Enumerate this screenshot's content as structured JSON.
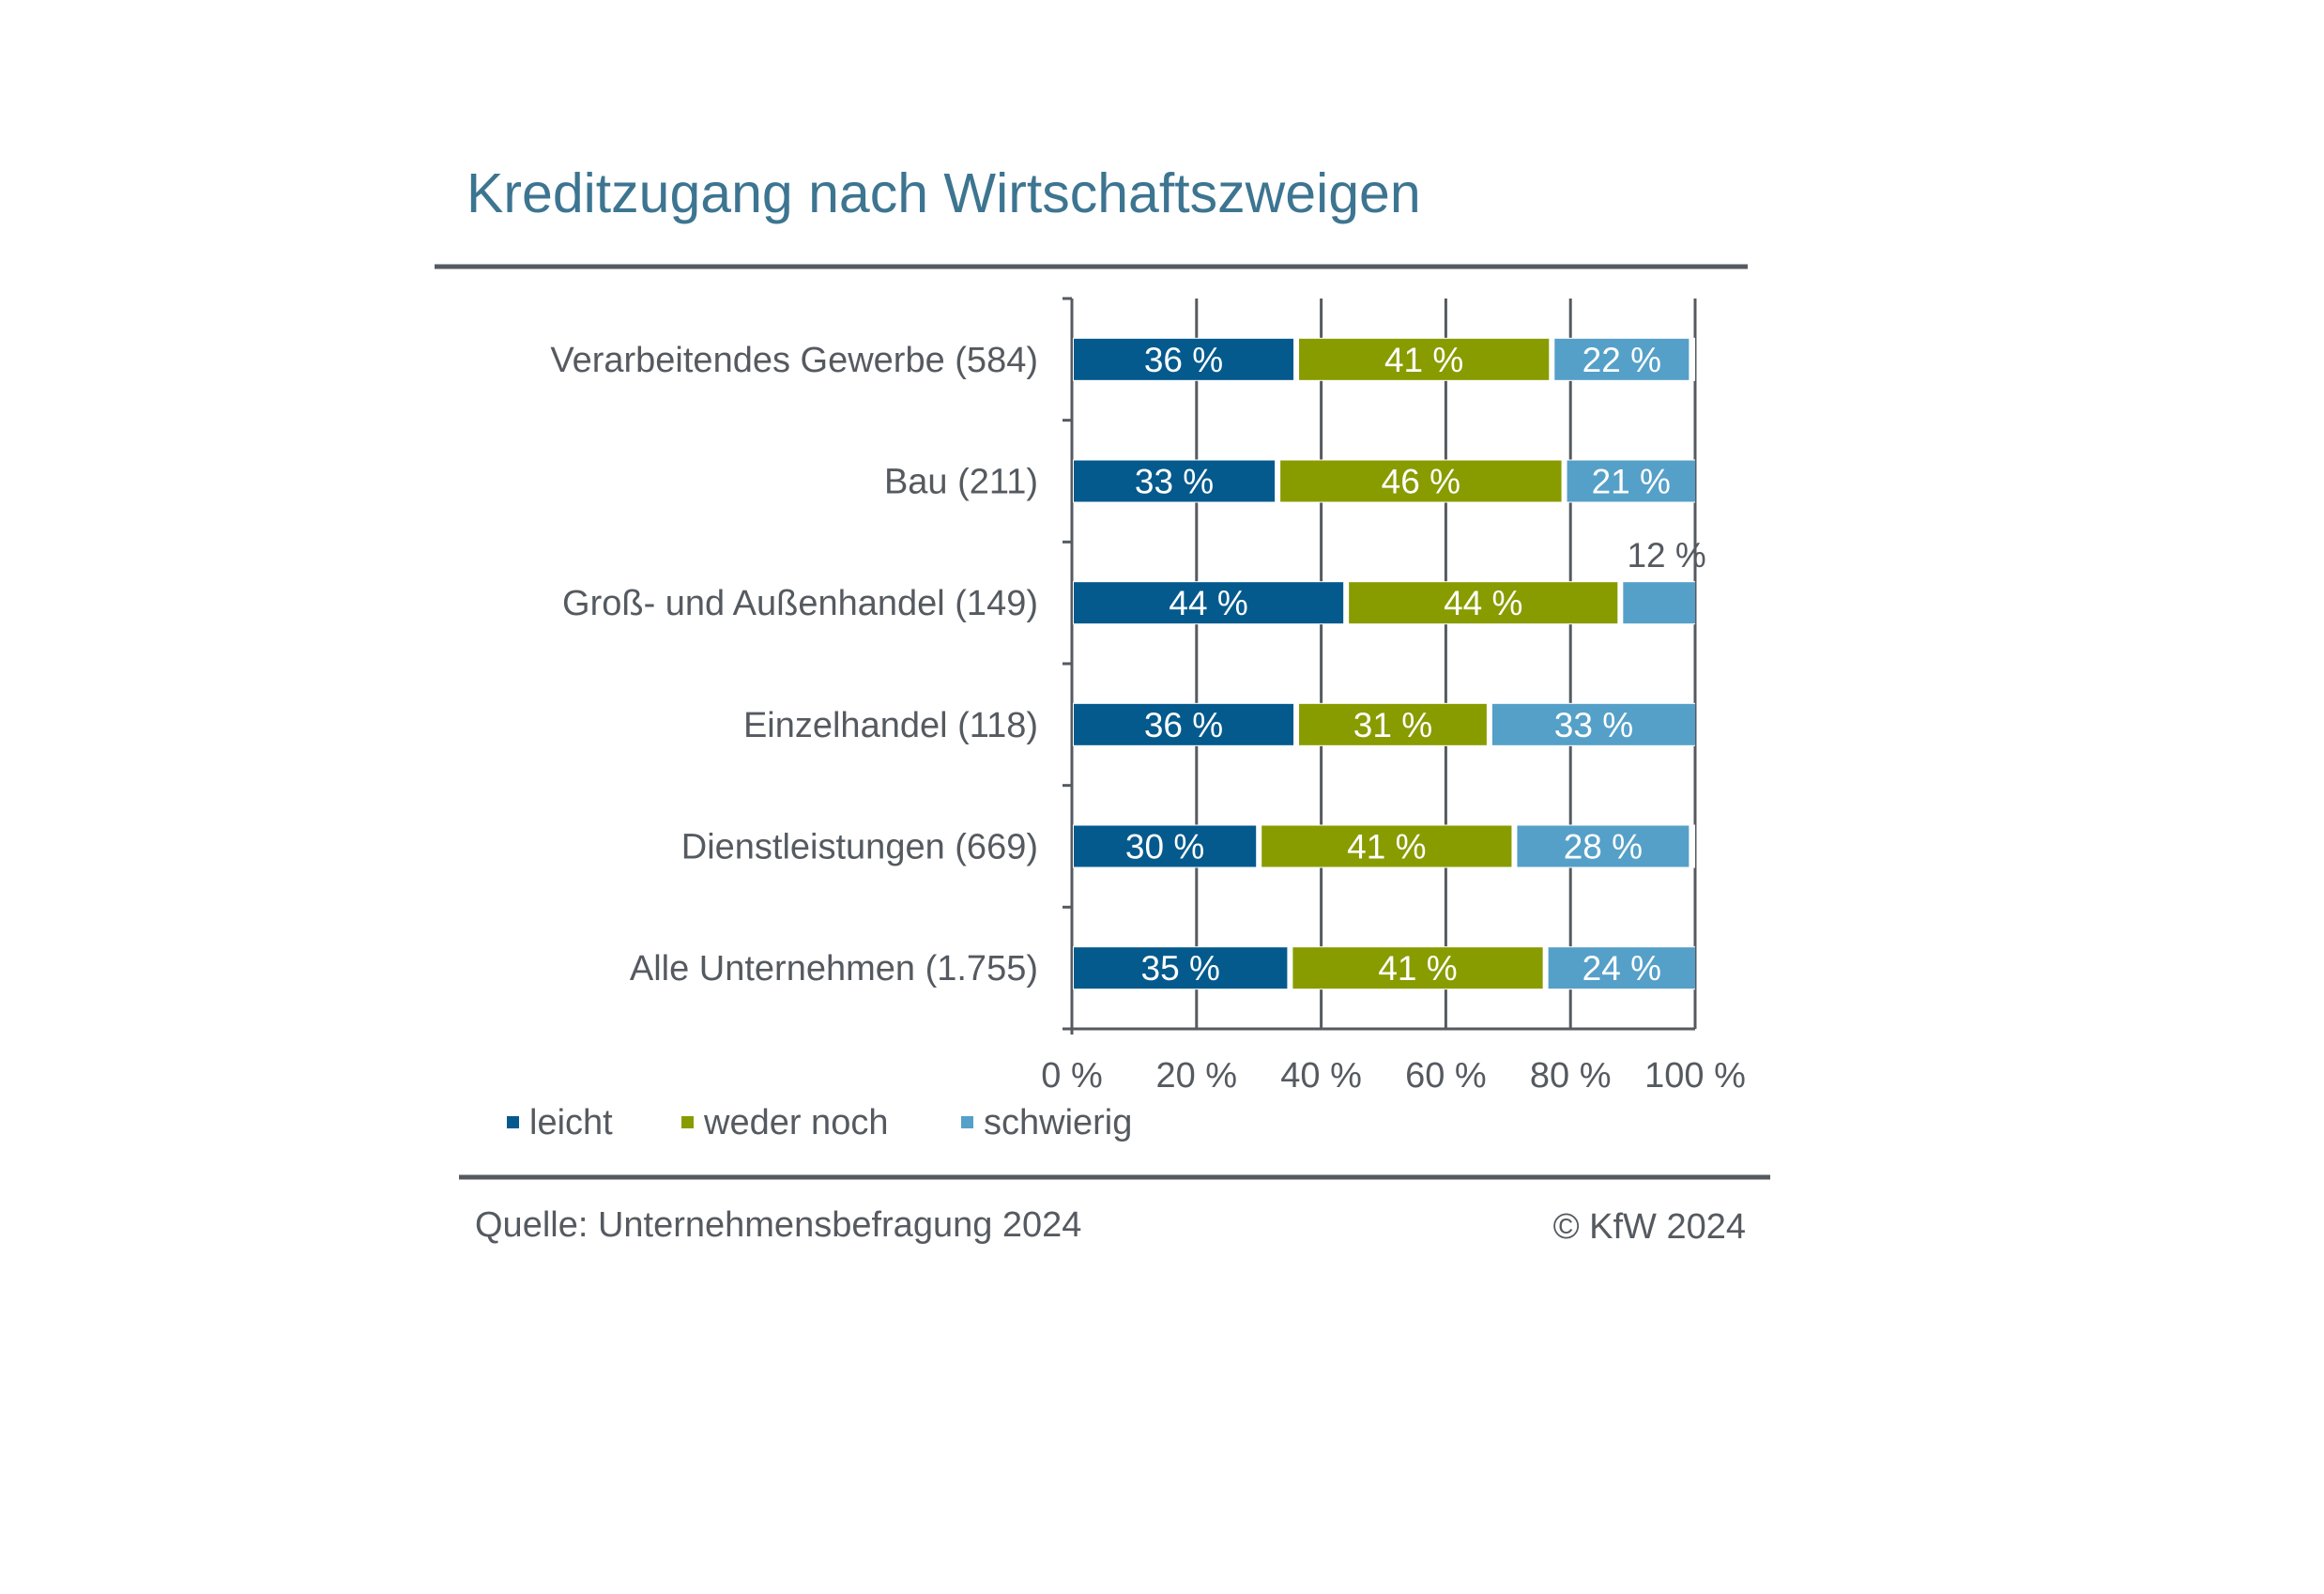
{
  "chart_data": {
    "type": "bar",
    "orientation": "horizontal",
    "stacked": true,
    "title": "Kreditzugang nach Wirtschaftszweigen",
    "categories": [
      "Verarbeitendes Gewerbe (584)",
      "Bau (211)",
      "Groß- und Außenhandel (149)",
      "Einzelhandel (118)",
      "Dienstleistungen (669)",
      "Alle Unternehmen (1.755)"
    ],
    "series": [
      {
        "name": "leicht",
        "color": "#045a8d",
        "values": [
          36,
          33,
          44,
          36,
          30,
          35
        ],
        "labels": [
          "36 %",
          "33 %",
          "44 %",
          "36 %",
          "30 %",
          "35 %"
        ]
      },
      {
        "name": "weder noch",
        "color": "#889c00",
        "values": [
          41,
          46,
          44,
          31,
          41,
          41
        ],
        "labels": [
          "41 %",
          "46 %",
          "44 %",
          "31 %",
          "41 %",
          "41 %"
        ]
      },
      {
        "name": "schwierig",
        "color": "#55a0c8",
        "values": [
          22,
          21,
          12,
          33,
          28,
          24
        ],
        "labels": [
          "22 %",
          "21 %",
          "12 %",
          "33 %",
          "28 %",
          "24 %"
        ]
      }
    ],
    "xlim": [
      0,
      100
    ],
    "xticks": [
      0,
      20,
      40,
      60,
      80,
      100
    ],
    "xtick_labels": [
      "0 %",
      "20 %",
      "40 %",
      "60 %",
      "80 %",
      "100 %"
    ],
    "grid": "vertical-dashed",
    "legend_position": "bottom-left"
  },
  "footer": {
    "source": "Quelle: Unternehmensbefragung 2024",
    "copyright": "© KfW 2024"
  }
}
